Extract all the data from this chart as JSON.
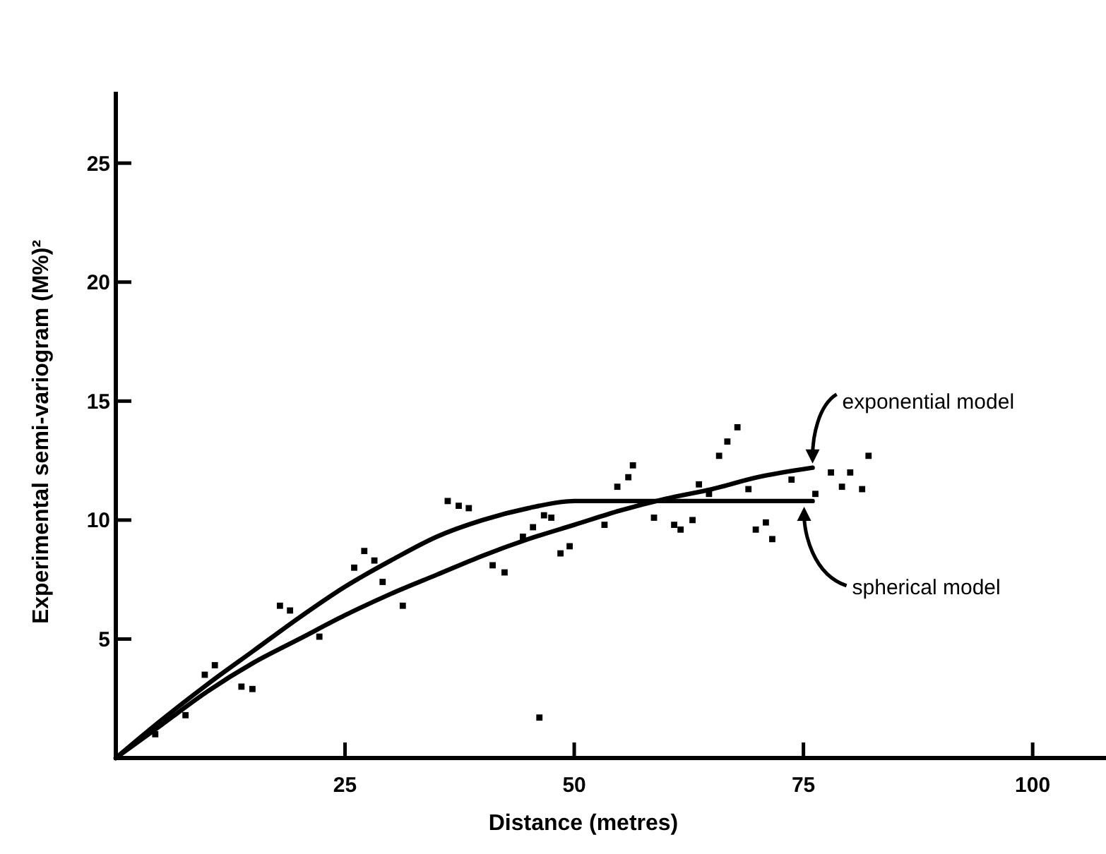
{
  "chart_data": {
    "type": "scatter",
    "xlabel": "Distance (metres)",
    "ylabel": "Experimental semi-variogram (M%)²",
    "xlim": [
      0,
      108
    ],
    "ylim": [
      0,
      28
    ],
    "xticks": [
      25,
      50,
      75,
      100
    ],
    "yticks": [
      5,
      10,
      15,
      20,
      25
    ],
    "grid": false,
    "marker": "square",
    "series": [
      {
        "color": "#000000",
        "x": [
          4.3,
          7.6,
          9.7,
          10.8,
          13.7,
          14.9,
          17.9,
          19.0,
          22.2,
          26.0,
          27.1,
          28.2,
          29.1,
          31.3,
          36.2,
          37.4,
          38.5,
          41.1,
          42.4,
          44.4,
          45.5,
          46.2,
          46.7,
          47.5,
          48.5,
          49.5,
          53.3,
          54.7,
          55.9,
          56.4,
          58.7,
          60.9,
          61.6,
          62.9,
          63.6,
          64.7,
          65.8,
          66.7,
          67.8,
          69.0,
          69.8,
          70.9,
          71.6,
          73.7,
          76.3,
          78.0,
          79.2,
          80.1,
          81.4,
          82.1
        ],
        "values": [
          1.0,
          1.8,
          3.5,
          3.9,
          3.0,
          2.9,
          6.4,
          6.2,
          5.1,
          8.0,
          8.7,
          8.3,
          7.4,
          6.4,
          10.8,
          10.6,
          10.5,
          8.1,
          7.8,
          9.3,
          9.7,
          1.7,
          10.2,
          10.1,
          8.6,
          8.9,
          9.8,
          11.4,
          11.8,
          12.3,
          10.1,
          9.8,
          9.6,
          10.0,
          11.5,
          11.1,
          12.7,
          13.3,
          13.9,
          11.3,
          9.6,
          9.9,
          9.2,
          11.7,
          11.1,
          12.0,
          11.4,
          12.0,
          11.3,
          12.7
        ]
      },
      {
        "type": "line",
        "name": "exponential model",
        "color": "#000000",
        "marker": "none",
        "line_style": "solid",
        "x": [
          0,
          5,
          10,
          15,
          20,
          25,
          30,
          35,
          40,
          45,
          50,
          55,
          60,
          65,
          70,
          76
        ],
        "values": [
          0,
          1.4,
          2.8,
          4.0,
          5.0,
          6.0,
          6.9,
          7.7,
          8.5,
          9.2,
          9.8,
          10.4,
          10.9,
          11.3,
          11.8,
          12.2
        ]
      },
      {
        "type": "line",
        "name": "spherical model",
        "color": "#000000",
        "marker": "none",
        "line_style": "solid",
        "x": [
          0,
          5,
          10,
          15,
          20,
          25,
          30,
          35,
          40,
          45,
          50,
          52,
          76
        ],
        "values": [
          0,
          1.6,
          3.1,
          4.5,
          5.9,
          7.2,
          8.3,
          9.3,
          10.0,
          10.5,
          10.8,
          10.8,
          10.8
        ]
      }
    ]
  }
}
